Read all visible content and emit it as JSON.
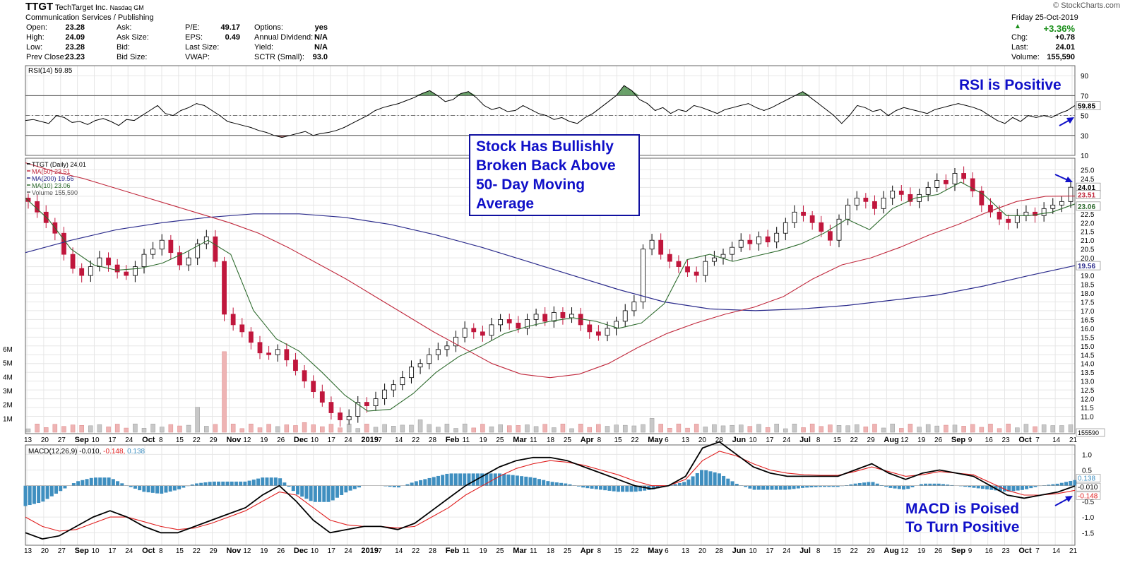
{
  "header": {
    "symbol": "TTGT",
    "company": "TechTarget Inc.",
    "exchange": "Nasdaq GM",
    "sector": "Communication Services / Publishing",
    "watermark": "© StockCharts.com",
    "date": "Friday  25-Oct-2019",
    "change_pct": "+3.36%",
    "col1": [
      {
        "label": "Open:",
        "value": "23.28"
      },
      {
        "label": "High:",
        "value": "24.09"
      },
      {
        "label": "Low:",
        "value": "23.28"
      },
      {
        "label": "Prev Close:",
        "value": "23.23"
      }
    ],
    "col2": [
      "Ask:",
      "Ask Size:",
      "Bid:",
      "Bid Size:"
    ],
    "col3": [
      {
        "label": "P/E:",
        "value": "49.17"
      },
      {
        "label": "EPS:",
        "value": "0.49"
      },
      {
        "label": "Last Size:",
        "value": ""
      },
      {
        "label": "VWAP:",
        "value": ""
      }
    ],
    "col4": [
      {
        "label": "Options:",
        "value": "yes"
      },
      {
        "label": "Annual Dividend:",
        "value": "N/A"
      },
      {
        "label": "Yield:",
        "value": "N/A"
      },
      {
        "label": "SCTR (Small):",
        "value": "93.0"
      }
    ],
    "col5": [
      {
        "label": "Chg:",
        "value": "+0.78"
      },
      {
        "label": "Last:",
        "value": "24.01"
      },
      {
        "label": "Volume:",
        "value": "155,590"
      }
    ]
  },
  "annotations": {
    "callout": [
      "Stock Has Bullishly",
      "Broken Back Above",
      "50- Day Moving",
      "Average"
    ],
    "rsi_note": "RSI is Positive",
    "macd_note": [
      "MACD is Poised",
      "To Turn Positive"
    ]
  },
  "chart_data": [
    {
      "type": "line",
      "title": "RSI(14) 59.85",
      "last_value": "59.85",
      "ylim": [
        10,
        100
      ],
      "y_ticks": [
        "90",
        "70",
        "50",
        "30",
        "10"
      ],
      "overbought": 70,
      "oversold": 30,
      "values": [
        45,
        46,
        44,
        42,
        50,
        48,
        43,
        44,
        41,
        45,
        47,
        44,
        40,
        46,
        45,
        50,
        55,
        60,
        52,
        50,
        55,
        58,
        62,
        60,
        55,
        50,
        44,
        42,
        40,
        38,
        35,
        33,
        30,
        28,
        30,
        32,
        34,
        30,
        32,
        33,
        35,
        38,
        42,
        46,
        50,
        55,
        58,
        60,
        62,
        65,
        68,
        72,
        75,
        70,
        64,
        66,
        72,
        74,
        68,
        60,
        56,
        58,
        54,
        55,
        60,
        56,
        52,
        50,
        46,
        48,
        44,
        42,
        48,
        52,
        58,
        64,
        70,
        80,
        75,
        66,
        62,
        55,
        58,
        52,
        56,
        54,
        60,
        58,
        55,
        52,
        56,
        58,
        60,
        62,
        58,
        55,
        58,
        62,
        66,
        70,
        74,
        68,
        62,
        56,
        50,
        42,
        50,
        60,
        58,
        54,
        56,
        50,
        55,
        58,
        56,
        54,
        52,
        56,
        58,
        60,
        62,
        60,
        58,
        55,
        50,
        45,
        42,
        48,
        44,
        50,
        48,
        50,
        48,
        52,
        55,
        60
      ]
    },
    {
      "type": "candlestick",
      "title": "TTGT (Daily) 24.01",
      "legend": [
        "TTGT (Daily) 24.01",
        "MA(50) 23.51",
        "MA(200) 19.56",
        "MA(10) 23.06",
        "Volume 155,590"
      ],
      "ylim": [
        10.5,
        25.5
      ],
      "y_ticks": [
        "25.0",
        "24.5",
        "24.0",
        "23.5",
        "23.0",
        "22.5",
        "22.0",
        "21.5",
        "21.0",
        "20.5",
        "20.0",
        "19.5",
        "19.0",
        "18.5",
        "18.0",
        "17.5",
        "17.0",
        "16.5",
        "16.0",
        "15.5",
        "15.0",
        "14.5",
        "14.0",
        "13.5",
        "13.0",
        "12.5",
        "12.0",
        "11.5",
        "11.0"
      ],
      "last_labels": [
        "24.01",
        "23.51",
        "23.06",
        "19.56"
      ],
      "volume_ticks": [
        "6M",
        "5M",
        "4M",
        "3M",
        "2M",
        "1M"
      ],
      "volume_last": "155590",
      "x_labels": [
        "13",
        "20",
        "27",
        "Sep",
        "10",
        "17",
        "24",
        "Oct",
        "8",
        "15",
        "22",
        "29",
        "Nov",
        "12",
        "19",
        "26",
        "Dec",
        "10",
        "17",
        "24",
        "2019",
        "7",
        "14",
        "22",
        "28",
        "Feb",
        "11",
        "19",
        "25",
        "Mar",
        "11",
        "18",
        "25",
        "Apr",
        "8",
        "15",
        "22",
        "May",
        "6",
        "13",
        "20",
        "28",
        "Jun",
        "10",
        "17",
        "24",
        "Jul",
        "8",
        "15",
        "22",
        "29",
        "Aug",
        "12",
        "19",
        "26",
        "Sep",
        "9",
        "16",
        "23",
        "Oct",
        "7",
        "14",
        "21"
      ],
      "close": [
        23.2,
        22.6,
        22.0,
        21.4,
        20.2,
        19.4,
        19.0,
        19.5,
        20.0,
        19.6,
        19.2,
        19.0,
        19.5,
        20.2,
        20.5,
        21.0,
        20.3,
        19.6,
        20.0,
        20.8,
        21.2,
        19.8,
        16.8,
        16.2,
        15.8,
        15.2,
        14.6,
        14.5,
        14.8,
        14.2,
        13.6,
        13.0,
        12.4,
        11.8,
        11.2,
        10.8,
        11.0,
        11.8,
        11.6,
        12.0,
        12.5,
        12.8,
        13.2,
        13.8,
        14.0,
        14.5,
        14.8,
        15.0,
        15.5,
        16.0,
        15.8,
        15.6,
        16.2,
        16.5,
        16.3,
        16.0,
        16.5,
        16.8,
        16.4,
        16.9,
        16.6,
        16.8,
        16.2,
        15.8,
        15.6,
        16.0,
        16.4,
        17.0,
        17.5,
        20.5,
        21.0,
        20.2,
        19.8,
        19.5,
        19.2,
        19.0,
        19.8,
        20.0,
        20.2,
        20.6,
        21.0,
        20.8,
        21.2,
        20.9,
        21.4,
        22.0,
        22.6,
        22.4,
        22.0,
        21.5,
        21.0,
        22.2,
        23.0,
        23.4,
        23.2,
        22.8,
        23.4,
        23.8,
        23.6,
        23.2,
        23.6,
        24.0,
        24.4,
        24.2,
        24.8,
        24.5,
        23.8,
        23.0,
        22.6,
        22.2,
        22.0,
        22.4,
        22.6,
        22.4,
        22.8,
        23.0,
        23.2,
        24.01
      ],
      "ma50": [
        25.4,
        24.9,
        24.5,
        24.0,
        23.5,
        23.0,
        22.5,
        22.0,
        21.4,
        20.6,
        19.7,
        18.8,
        17.8,
        16.8,
        15.8,
        14.9,
        14.0,
        13.4,
        13.2,
        13.4,
        14.0,
        14.9,
        15.7,
        16.3,
        16.8,
        17.2,
        17.8,
        18.8,
        19.6,
        20.0,
        20.6,
        21.3,
        21.9,
        22.6,
        23.2,
        23.5,
        23.51
      ],
      "ma200": [
        20.3,
        21.0,
        21.6,
        22.0,
        22.3,
        22.5,
        22.5,
        22.3,
        21.9,
        21.3,
        20.6,
        19.8,
        19.0,
        18.2,
        17.5,
        17.1,
        17.0,
        17.1,
        17.3,
        17.6,
        17.9,
        18.4,
        19.0,
        19.56
      ],
      "ma10": [
        23.4,
        22.2,
        20.5,
        19.6,
        19.3,
        19.4,
        19.7,
        20.3,
        21.0,
        20.2,
        17.0,
        15.4,
        14.7,
        13.5,
        12.2,
        11.3,
        11.4,
        12.3,
        13.5,
        14.4,
        15.0,
        15.7,
        16.1,
        16.4,
        16.6,
        16.4,
        16.0,
        16.3,
        17.4,
        19.9,
        20.2,
        19.8,
        20.1,
        20.4,
        20.8,
        21.4,
        22.2,
        21.6,
        22.8,
        23.4,
        23.6,
        24.3,
        23.6,
        22.4,
        22.4,
        22.6,
        23.06
      ]
    },
    {
      "type": "line",
      "title": "MACD(12,26,9) -0.010, -0.148, 0.138",
      "title_parts": [
        "MACD(12,26,9) -0.010,",
        "-0.148,",
        "0.138"
      ],
      "ylim": [
        -1.9,
        1.3
      ],
      "y_ticks": [
        "1.0",
        "0.5",
        "-0.5",
        "-1.0",
        "-1.5"
      ],
      "last_labels": [
        "0.138",
        "-0.010",
        "-0.148"
      ],
      "macd": [
        -1.5,
        -1.7,
        -1.6,
        -1.3,
        -1.0,
        -0.8,
        -1.0,
        -1.3,
        -1.5,
        -1.5,
        -1.3,
        -1.1,
        -0.9,
        -0.7,
        -0.3,
        0.0,
        -0.5,
        -1.1,
        -1.5,
        -1.4,
        -1.3,
        -1.3,
        -1.4,
        -1.2,
        -0.8,
        -0.4,
        0.0,
        0.3,
        0.6,
        0.8,
        0.9,
        0.9,
        0.8,
        0.6,
        0.4,
        0.2,
        0.0,
        -0.1,
        0.0,
        0.3,
        1.2,
        1.4,
        1.0,
        0.6,
        0.4,
        0.3,
        0.3,
        0.3,
        0.3,
        0.5,
        0.7,
        0.4,
        0.2,
        0.4,
        0.5,
        0.4,
        0.3,
        0.0,
        -0.3,
        -0.4,
        -0.3,
        -0.2,
        -0.01
      ],
      "signal": [
        -1.0,
        -1.3,
        -1.45,
        -1.4,
        -1.2,
        -1.0,
        -1.0,
        -1.15,
        -1.3,
        -1.4,
        -1.35,
        -1.2,
        -1.0,
        -0.8,
        -0.5,
        -0.2,
        -0.3,
        -0.7,
        -1.1,
        -1.25,
        -1.3,
        -1.3,
        -1.35,
        -1.3,
        -1.0,
        -0.7,
        -0.3,
        0.0,
        0.3,
        0.55,
        0.7,
        0.8,
        0.75,
        0.65,
        0.5,
        0.35,
        0.15,
        0.0,
        0.0,
        0.2,
        0.8,
        1.1,
        0.95,
        0.7,
        0.5,
        0.4,
        0.35,
        0.33,
        0.33,
        0.45,
        0.6,
        0.45,
        0.3,
        0.35,
        0.45,
        0.4,
        0.35,
        0.1,
        -0.15,
        -0.3,
        -0.3,
        -0.25,
        -0.148
      ]
    }
  ]
}
